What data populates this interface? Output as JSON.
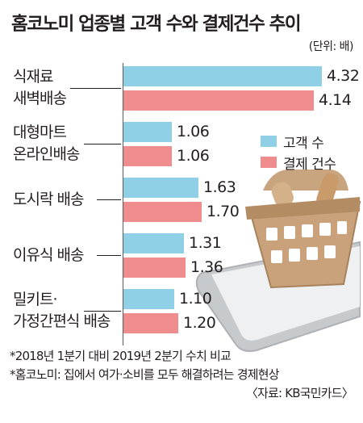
{
  "title": "홈코노미 업종별 고객 수와 결제건수 추이",
  "unit": "(단위: 배)",
  "chart_data": {
    "type": "bar",
    "orientation": "horizontal",
    "categories": [
      [
        "식재료",
        "새벽배송"
      ],
      [
        "대형마트",
        "온라인배송"
      ],
      [
        "도시락 배송"
      ],
      [
        "이유식 배송"
      ],
      [
        "밀키트·",
        "가정간편식 배송"
      ]
    ],
    "series": [
      {
        "name": "고객 수",
        "color": "#8fd0e6",
        "values": [
          4.32,
          1.06,
          1.63,
          1.31,
          1.1
        ],
        "labels": [
          "4.32",
          "1.06",
          "1.63",
          "1.31",
          "1.10"
        ]
      },
      {
        "name": "결제 건수",
        "color": "#ef8c8e",
        "values": [
          4.14,
          1.06,
          1.7,
          1.36,
          1.2
        ],
        "labels": [
          "4.14",
          "1.06",
          "1.70",
          "1.36",
          "1.20"
        ]
      }
    ],
    "xlim": [
      0,
      4.32
    ],
    "legend_position": "right",
    "grid": false
  },
  "notes": [
    "*2018년 1분기 대비 2019년 2분기 수치 비교",
    "*홈코노미: 집에서 여가·소비를 모두 해결하려는 경제현상"
  ],
  "source": "〈자료: KB국민카드〉",
  "illustration": "shopping-basket-on-smartphone"
}
